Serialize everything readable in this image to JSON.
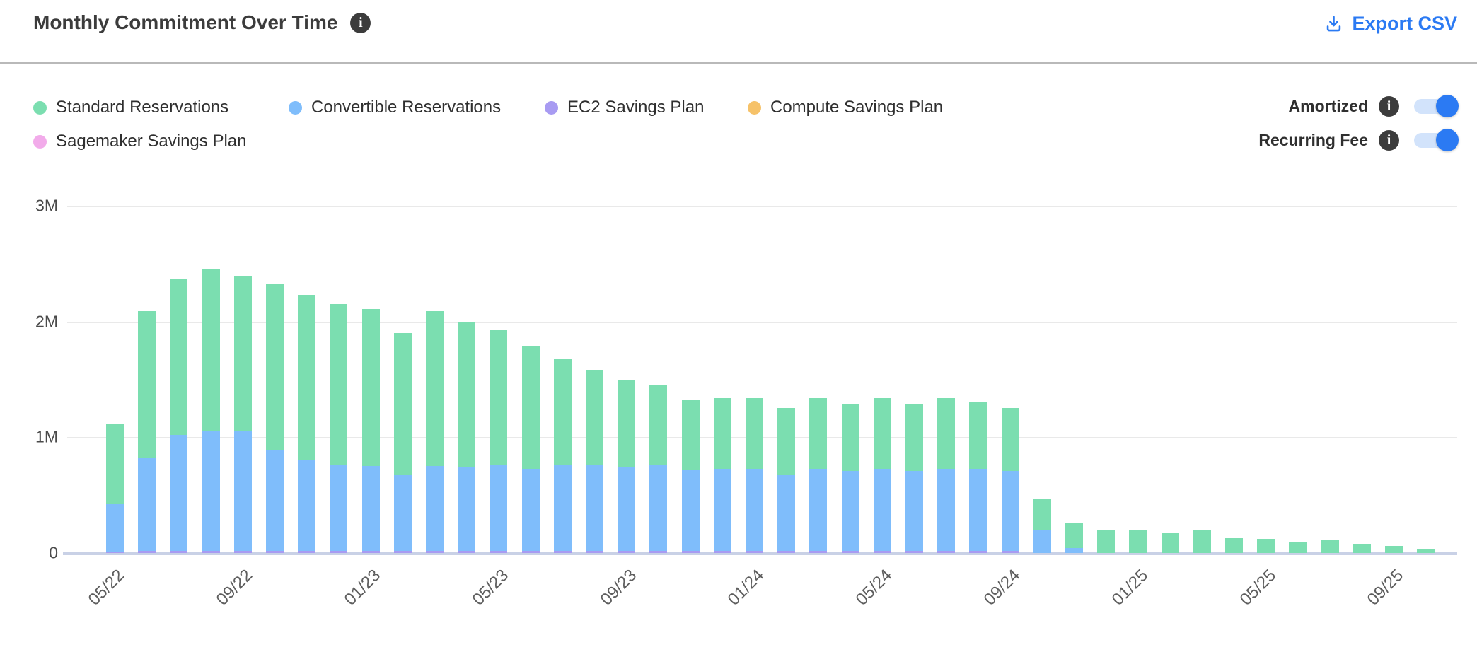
{
  "header": {
    "title": "Monthly Commitment Over Time",
    "export_label": "Export CSV"
  },
  "legend": {
    "items": [
      {
        "label": "Standard Reservations",
        "color": "#7bdeb0"
      },
      {
        "label": "Convertible Reservations",
        "color": "#7fbdfb"
      },
      {
        "label": "EC2 Savings Plan",
        "color": "#a89bf2"
      },
      {
        "label": "Compute Savings Plan",
        "color": "#f6c269"
      },
      {
        "label": "Sagemaker Savings Plan",
        "color": "#f2abea"
      }
    ]
  },
  "toggles": [
    {
      "label": "Amortized",
      "state": "on"
    },
    {
      "label": "Recurring Fee",
      "state": "on"
    }
  ],
  "chart_data": {
    "type": "bar",
    "stacked": true,
    "title": "Monthly Commitment Over Time",
    "xlabel": "",
    "ylabel": "",
    "unit": "millions USD",
    "ylim": [
      0,
      3
    ],
    "grid": true,
    "legend_position": "top-left",
    "categories": [
      "05/22",
      "06/22",
      "07/22",
      "08/22",
      "09/22",
      "10/22",
      "11/22",
      "12/22",
      "01/23",
      "02/23",
      "03/23",
      "04/23",
      "05/23",
      "06/23",
      "07/23",
      "08/23",
      "09/23",
      "10/23",
      "11/23",
      "12/23",
      "01/24",
      "02/24",
      "03/24",
      "04/24",
      "05/24",
      "06/24",
      "07/24",
      "08/24",
      "09/24",
      "10/24",
      "11/24",
      "12/24",
      "01/25",
      "02/25",
      "03/25",
      "04/25",
      "05/25",
      "06/25",
      "07/25",
      "08/25",
      "09/25",
      "10/25"
    ],
    "xtick_labels_shown": [
      "05/22",
      "09/22",
      "01/23",
      "05/23",
      "09/23",
      "01/24",
      "05/24",
      "09/24",
      "01/25",
      "05/25",
      "09/25"
    ],
    "ytick_labels": [
      "0",
      "1M",
      "2M",
      "3M"
    ],
    "ytick_values": [
      0,
      1,
      2,
      3
    ],
    "series": [
      {
        "name": "Standard Reservations",
        "color": "#7bdeb0",
        "values": [
          0.69,
          1.27,
          1.35,
          1.39,
          1.33,
          1.44,
          1.43,
          1.39,
          1.36,
          1.22,
          1.34,
          1.26,
          1.17,
          1.06,
          0.92,
          0.82,
          0.76,
          0.69,
          0.6,
          0.61,
          0.61,
          0.57,
          0.61,
          0.58,
          0.61,
          0.58,
          0.61,
          0.58,
          0.54,
          0.27,
          0.22,
          0.2,
          0.2,
          0.17,
          0.2,
          0.13,
          0.12,
          0.1,
          0.11,
          0.08,
          0.06,
          0.03
        ]
      },
      {
        "name": "Convertible Reservations",
        "color": "#7fbdfb",
        "values": [
          0.41,
          0.8,
          1.0,
          1.04,
          1.04,
          0.87,
          0.78,
          0.74,
          0.73,
          0.66,
          0.73,
          0.72,
          0.74,
          0.71,
          0.74,
          0.74,
          0.72,
          0.74,
          0.7,
          0.71,
          0.71,
          0.66,
          0.71,
          0.69,
          0.71,
          0.69,
          0.71,
          0.71,
          0.69,
          0.2,
          0.04,
          0,
          0,
          0,
          0,
          0,
          0,
          0,
          0,
          0,
          0,
          0
        ]
      },
      {
        "name": "EC2 Savings Plan",
        "color": "#a89bf2",
        "values": [
          0.01,
          0.02,
          0.02,
          0.02,
          0.02,
          0.02,
          0.02,
          0.02,
          0.02,
          0.02,
          0.02,
          0.02,
          0.02,
          0.02,
          0.02,
          0.02,
          0.02,
          0.02,
          0.02,
          0.02,
          0.02,
          0.02,
          0.02,
          0.02,
          0.02,
          0.02,
          0.02,
          0.02,
          0.02,
          0,
          0,
          0,
          0,
          0,
          0,
          0,
          0,
          0,
          0,
          0,
          0,
          0
        ]
      },
      {
        "name": "Compute Savings Plan",
        "color": "#f6c269",
        "values": [
          0,
          0,
          0,
          0,
          0,
          0,
          0,
          0,
          0,
          0,
          0,
          0,
          0,
          0,
          0,
          0,
          0,
          0,
          0,
          0,
          0,
          0,
          0,
          0,
          0,
          0,
          0,
          0,
          0,
          0,
          0,
          0,
          0,
          0,
          0,
          0,
          0,
          0,
          0,
          0,
          0,
          0
        ]
      },
      {
        "name": "Sagemaker Savings Plan",
        "color": "#f2abea",
        "values": [
          0,
          0,
          0,
          0,
          0,
          0,
          0,
          0,
          0,
          0,
          0,
          0,
          0,
          0,
          0,
          0,
          0,
          0,
          0,
          0,
          0,
          0,
          0,
          0,
          0,
          0,
          0,
          0,
          0,
          0,
          0,
          0,
          0,
          0,
          0,
          0,
          0,
          0,
          0,
          0,
          0,
          0
        ]
      }
    ]
  }
}
